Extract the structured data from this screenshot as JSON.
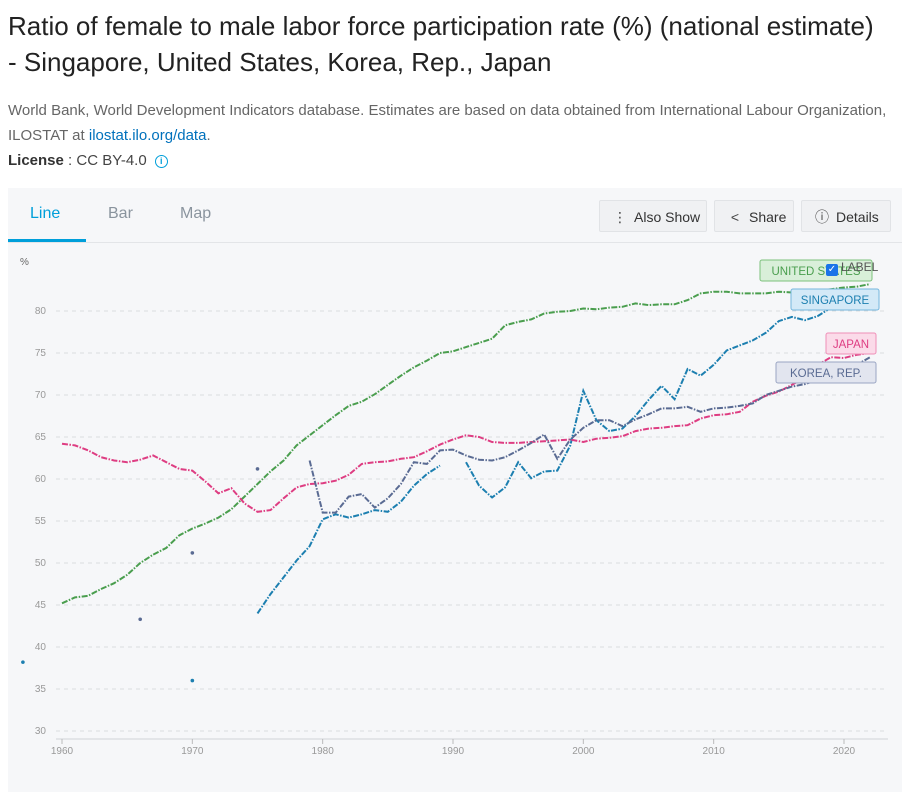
{
  "page": {
    "title": "Ratio of female to male labor force participation rate (%) (national estimate) - Singapore, United States, Korea, Rep., Japan",
    "source_text": "World Bank, World Development Indicators database. Estimates are based on data obtained from International Labour Organization, ILOSTAT at ",
    "source_link": "ilostat.ilo.org/data",
    "source_end": ".",
    "license_label": "License",
    "license_value": " : CC BY-4.0"
  },
  "tabs": [
    {
      "label": "Line",
      "active": true
    },
    {
      "label": "Bar",
      "active": false
    },
    {
      "label": "Map",
      "active": false
    }
  ],
  "toolbar": {
    "also_show": "Also Show",
    "share": "Share",
    "details": "Details"
  },
  "label_toggle": {
    "text": "LABEL",
    "checked": true
  },
  "icons": [
    "info-icon",
    "more-vertical-icon",
    "share-icon",
    "info-circle-icon",
    "checkbox-icon"
  ],
  "colors": {
    "accent": "#009fda",
    "united_states": "#4a9e4e",
    "singapore": "#1c7fb0",
    "japan": "#de3d82",
    "korea": "#5a6b93"
  },
  "chart_data": {
    "type": "line",
    "ylabel": "%",
    "xlim": [
      1960,
      2023
    ],
    "ylim": [
      30,
      85
    ],
    "x_ticks": [
      1960,
      1970,
      1980,
      1990,
      2000,
      2010,
      2020
    ],
    "y_ticks": [
      30,
      35,
      40,
      45,
      50,
      55,
      60,
      65,
      70,
      75,
      80
    ],
    "grid": true,
    "series": [
      {
        "name": "UNITED STATES",
        "color": "#4a9e4e",
        "points": [
          [
            1960,
            45.2
          ],
          [
            1961,
            45.9
          ],
          [
            1962,
            46.1
          ],
          [
            1963,
            46.9
          ],
          [
            1964,
            47.6
          ],
          [
            1965,
            48.6
          ],
          [
            1966,
            50.0
          ],
          [
            1967,
            51.0
          ],
          [
            1968,
            51.8
          ],
          [
            1969,
            53.3
          ],
          [
            1970,
            54.1
          ],
          [
            1971,
            54.7
          ],
          [
            1972,
            55.4
          ],
          [
            1973,
            56.4
          ],
          [
            1974,
            57.9
          ],
          [
            1975,
            59.4
          ],
          [
            1976,
            60.9
          ],
          [
            1977,
            62.2
          ],
          [
            1978,
            64.0
          ],
          [
            1979,
            65.2
          ],
          [
            1980,
            66.4
          ],
          [
            1981,
            67.6
          ],
          [
            1982,
            68.7
          ],
          [
            1983,
            69.2
          ],
          [
            1984,
            70.1
          ],
          [
            1985,
            71.2
          ],
          [
            1986,
            72.3
          ],
          [
            1987,
            73.3
          ],
          [
            1988,
            74.1
          ],
          [
            1989,
            75.0
          ],
          [
            1990,
            75.2
          ],
          [
            1991,
            75.7
          ],
          [
            1992,
            76.2
          ],
          [
            1993,
            76.7
          ],
          [
            1994,
            78.3
          ],
          [
            1995,
            78.7
          ],
          [
            1996,
            79.0
          ],
          [
            1997,
            79.7
          ],
          [
            1998,
            79.9
          ],
          [
            1999,
            80.0
          ],
          [
            2000,
            80.3
          ],
          [
            2001,
            80.2
          ],
          [
            2002,
            80.4
          ],
          [
            2003,
            80.5
          ],
          [
            2004,
            80.9
          ],
          [
            2005,
            80.7
          ],
          [
            2006,
            80.8
          ],
          [
            2007,
            80.8
          ],
          [
            2008,
            81.3
          ],
          [
            2009,
            82.1
          ],
          [
            2010,
            82.3
          ],
          [
            2011,
            82.3
          ],
          [
            2012,
            82.1
          ],
          [
            2013,
            82.1
          ],
          [
            2014,
            82.1
          ],
          [
            2015,
            82.3
          ],
          [
            2016,
            82.2
          ],
          [
            2017,
            82.3
          ],
          [
            2018,
            82.4
          ],
          [
            2019,
            82.6
          ],
          [
            2020,
            82.8
          ],
          [
            2021,
            82.9
          ],
          [
            2022,
            83.2
          ]
        ]
      },
      {
        "name": "SINGAPORE",
        "color": "#1c7fb0",
        "points": [
          [
            1957,
            38.2
          ],
          [
            1970,
            36.0
          ],
          [
            1975,
            44.0
          ],
          [
            1976,
            46.3
          ],
          [
            1977,
            48.3
          ],
          [
            1978,
            50.3
          ],
          [
            1979,
            52.0
          ],
          [
            1980,
            55.2
          ],
          [
            1981,
            55.8
          ],
          [
            1982,
            55.4
          ],
          [
            1983,
            55.8
          ],
          [
            1984,
            56.3
          ],
          [
            1985,
            56.1
          ],
          [
            1986,
            57.3
          ],
          [
            1987,
            59.2
          ],
          [
            1988,
            60.6
          ],
          [
            1989,
            61.6
          ],
          [
            1991,
            62.0
          ],
          [
            1992,
            59.2
          ],
          [
            1993,
            57.8
          ],
          [
            1994,
            59.0
          ],
          [
            1995,
            62.0
          ],
          [
            1996,
            60.1
          ],
          [
            1997,
            60.9
          ],
          [
            1998,
            61.0
          ],
          [
            1999,
            64.0
          ],
          [
            2000,
            70.5
          ],
          [
            2001,
            67.0
          ],
          [
            2002,
            65.7
          ],
          [
            2003,
            66.0
          ],
          [
            2004,
            67.5
          ],
          [
            2005,
            69.4
          ],
          [
            2006,
            71.1
          ],
          [
            2007,
            69.5
          ],
          [
            2008,
            73.1
          ],
          [
            2009,
            72.3
          ],
          [
            2010,
            73.6
          ],
          [
            2011,
            75.3
          ],
          [
            2012,
            75.9
          ],
          [
            2013,
            76.5
          ],
          [
            2014,
            77.4
          ],
          [
            2015,
            78.8
          ],
          [
            2016,
            79.3
          ],
          [
            2017,
            78.9
          ],
          [
            2018,
            79.4
          ],
          [
            2019,
            80.4
          ],
          [
            2020,
            80.3
          ],
          [
            2021,
            81.3
          ],
          [
            2022,
            81.9
          ]
        ]
      },
      {
        "name": "JAPAN",
        "color": "#de3d82",
        "points": [
          [
            1960,
            64.2
          ],
          [
            1961,
            64.0
          ],
          [
            1962,
            63.4
          ],
          [
            1963,
            62.6
          ],
          [
            1964,
            62.2
          ],
          [
            1965,
            62.0
          ],
          [
            1966,
            62.3
          ],
          [
            1967,
            62.8
          ],
          [
            1968,
            62.0
          ],
          [
            1969,
            61.2
          ],
          [
            1970,
            61.0
          ],
          [
            1971,
            59.7
          ],
          [
            1972,
            58.3
          ],
          [
            1973,
            58.9
          ],
          [
            1974,
            57.1
          ],
          [
            1975,
            56.1
          ],
          [
            1976,
            56.3
          ],
          [
            1977,
            57.7
          ],
          [
            1978,
            59.0
          ],
          [
            1979,
            59.4
          ],
          [
            1980,
            59.5
          ],
          [
            1981,
            59.8
          ],
          [
            1982,
            60.5
          ],
          [
            1983,
            61.8
          ],
          [
            1984,
            62.0
          ],
          [
            1985,
            62.1
          ],
          [
            1986,
            62.4
          ],
          [
            1987,
            62.6
          ],
          [
            1988,
            63.3
          ],
          [
            1989,
            64.1
          ],
          [
            1990,
            64.7
          ],
          [
            1991,
            65.2
          ],
          [
            1992,
            65.0
          ],
          [
            1993,
            64.4
          ],
          [
            1994,
            64.3
          ],
          [
            1995,
            64.3
          ],
          [
            1996,
            64.4
          ],
          [
            1997,
            64.5
          ],
          [
            1998,
            64.6
          ],
          [
            1999,
            64.7
          ],
          [
            2000,
            64.4
          ],
          [
            2001,
            64.8
          ],
          [
            2002,
            64.9
          ],
          [
            2003,
            65.1
          ],
          [
            2004,
            65.7
          ],
          [
            2005,
            66.0
          ],
          [
            2006,
            66.1
          ],
          [
            2007,
            66.3
          ],
          [
            2008,
            66.4
          ],
          [
            2009,
            67.2
          ],
          [
            2010,
            67.6
          ],
          [
            2011,
            67.7
          ],
          [
            2012,
            68.0
          ],
          [
            2013,
            69.2
          ],
          [
            2014,
            69.9
          ],
          [
            2015,
            70.4
          ],
          [
            2016,
            71.2
          ],
          [
            2017,
            72.1
          ],
          [
            2018,
            73.6
          ],
          [
            2019,
            74.5
          ],
          [
            2020,
            74.4
          ],
          [
            2021,
            74.8
          ],
          [
            2022,
            75.0
          ]
        ]
      },
      {
        "name": "KOREA, REP.",
        "color": "#5a6b93",
        "points": [
          [
            1966,
            43.3
          ],
          [
            1970,
            51.2
          ],
          [
            1975,
            61.2
          ],
          [
            1979,
            62.2
          ],
          [
            1980,
            56.0
          ],
          [
            1981,
            56.0
          ],
          [
            1982,
            57.9
          ],
          [
            1983,
            58.2
          ],
          [
            1984,
            56.6
          ],
          [
            1985,
            57.7
          ],
          [
            1986,
            59.4
          ],
          [
            1987,
            62.0
          ],
          [
            1988,
            61.8
          ],
          [
            1989,
            63.4
          ],
          [
            1990,
            63.5
          ],
          [
            1991,
            62.8
          ],
          [
            1992,
            62.3
          ],
          [
            1993,
            62.2
          ],
          [
            1994,
            62.6
          ],
          [
            1995,
            63.4
          ],
          [
            1996,
            64.3
          ],
          [
            1997,
            65.3
          ],
          [
            1998,
            62.4
          ],
          [
            1999,
            64.7
          ],
          [
            2000,
            66.1
          ],
          [
            2001,
            67.0
          ],
          [
            2002,
            67.0
          ],
          [
            2003,
            66.3
          ],
          [
            2004,
            67.1
          ],
          [
            2005,
            67.7
          ],
          [
            2006,
            68.4
          ],
          [
            2007,
            68.4
          ],
          [
            2008,
            68.6
          ],
          [
            2009,
            68.0
          ],
          [
            2010,
            68.4
          ],
          [
            2011,
            68.5
          ],
          [
            2012,
            68.7
          ],
          [
            2013,
            69.0
          ],
          [
            2014,
            70.0
          ],
          [
            2015,
            70.5
          ],
          [
            2016,
            71.0
          ],
          [
            2017,
            71.3
          ],
          [
            2018,
            71.8
          ],
          [
            2019,
            72.6
          ],
          [
            2020,
            72.7
          ],
          [
            2021,
            73.6
          ],
          [
            2022,
            74.5
          ]
        ]
      }
    ]
  }
}
